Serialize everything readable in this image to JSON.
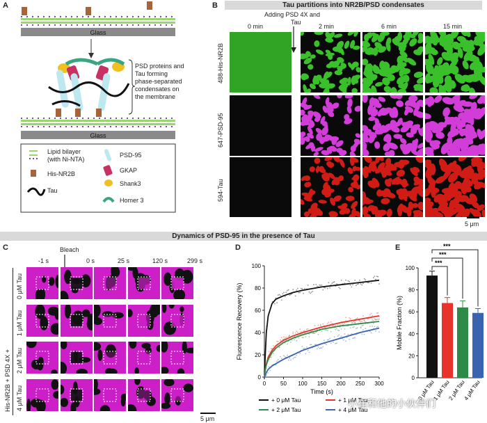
{
  "panel_a": {
    "letter": "A",
    "glass_label": "Glass",
    "glass_label2": "Glass",
    "description": [
      "PSD proteins and",
      "Tau forming",
      "phase-separated",
      "condensates on",
      "the membrane"
    ],
    "legend": {
      "lipid": [
        "Lipid bilayer",
        "(with Ni-NTA)"
      ],
      "nr2b": "His-NR2B",
      "tau": "Tau",
      "psd95": "PSD-95",
      "gkap": "GKAP",
      "shank3": "Shank3",
      "homer3": "Homer 3"
    }
  },
  "panel_b": {
    "letter": "B",
    "title": "Tau partitions into NR2B/PSD condensates",
    "annotation": [
      "Adding PSD 4X and",
      "Tau"
    ],
    "timepoints": [
      "0 min",
      "2 min",
      "6 min",
      "15 min"
    ],
    "rows": [
      "488-His-NR2B",
      "647-PSD-95",
      "594-Tau"
    ],
    "scale": "5 μm",
    "colors": {
      "green": "#39c02a",
      "magenta": "#d23cd8",
      "red": "#d01c14"
    }
  },
  "section_title": "Dynamics of PSD-95 in the presence of Tau",
  "panel_c": {
    "letter": "C",
    "bleach": "Bleach",
    "timepoints": [
      "-1 s",
      "0 s",
      "25 s",
      "120 s",
      "299 s"
    ],
    "rows": [
      "0 μM Tau",
      "1 μM Tau",
      "2 μM Tau",
      "4 μM Tau"
    ],
    "side_label": "His-NR2B + PSD 4X +",
    "scale": "5 μm"
  },
  "panel_d": {
    "letter": "D",
    "chart_data": {
      "type": "line",
      "xlabel": "Time (s)",
      "ylabel": "Fluorescence Recovery (%)",
      "xlim": [
        0,
        300
      ],
      "ylim": [
        0,
        100
      ],
      "xticks": [
        0,
        50,
        100,
        150,
        200,
        250,
        300
      ],
      "yticks": [
        0,
        20,
        40,
        60,
        80,
        100
      ],
      "series": [
        {
          "name": "+ 0 μM Tau",
          "color": "#111111",
          "x": [
            0,
            5,
            10,
            20,
            30,
            50,
            75,
            100,
            150,
            200,
            250,
            300
          ],
          "values": [
            2,
            40,
            55,
            66,
            70,
            73,
            76,
            78,
            81,
            83,
            85,
            87
          ]
        },
        {
          "name": "+ 1 μM Tau",
          "color": "#e8322a",
          "x": [
            0,
            5,
            10,
            20,
            30,
            50,
            75,
            100,
            150,
            200,
            250,
            300
          ],
          "values": [
            2,
            12,
            18,
            24,
            28,
            33,
            37,
            40,
            45,
            49,
            52,
            55
          ]
        },
        {
          "name": "+ 2 μM Tau",
          "color": "#2e8b47",
          "x": [
            0,
            5,
            10,
            20,
            30,
            50,
            75,
            100,
            150,
            200,
            250,
            300
          ],
          "values": [
            2,
            11,
            16,
            22,
            26,
            31,
            35,
            38,
            43,
            46,
            48,
            50
          ]
        },
        {
          "name": "+ 4 μM Tau",
          "color": "#3a63b0",
          "x": [
            0,
            5,
            10,
            20,
            30,
            50,
            75,
            100,
            150,
            200,
            250,
            300
          ],
          "values": [
            0,
            4,
            7,
            10,
            12,
            16,
            20,
            24,
            30,
            35,
            40,
            44
          ]
        }
      ]
    }
  },
  "panel_e": {
    "letter": "E",
    "chart_data": {
      "type": "bar",
      "ylabel": "Mobile Fraction (%)",
      "ylim": [
        0,
        100
      ],
      "yticks": [
        0,
        20,
        40,
        60,
        80,
        100
      ],
      "categories": [
        "0 μM Tau",
        "1 μM Tau",
        "2 μM Tau",
        "4 μM Tau"
      ],
      "values": [
        93,
        68,
        64,
        59
      ],
      "errors": [
        4,
        5,
        6,
        4
      ],
      "colors": [
        "#111111",
        "#e8322a",
        "#2e8b47",
        "#3a63b0"
      ],
      "significance": [
        "***",
        "***",
        "***"
      ]
    }
  },
  "watermark": "小崔和他的小伙伴们"
}
